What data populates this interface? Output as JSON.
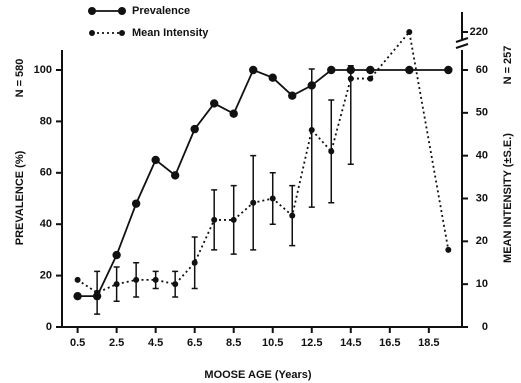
{
  "chart_data": {
    "type": "line",
    "x_label": "MOOSE AGE (Years)",
    "y_label": "PREVALENCE (%)",
    "y2_label": "MEAN INTENSITY (±S.E.)",
    "y_annotation": "N = 580",
    "y2_annotation": "N = 257",
    "x": [
      0.5,
      1.5,
      2.5,
      3.5,
      4.5,
      5.5,
      6.5,
      7.5,
      8.5,
      9.5,
      10.5,
      11.5,
      12.5,
      13.5,
      14.5,
      15.5,
      17.5,
      19.5
    ],
    "xlim": [
      -0.3,
      20.2
    ],
    "xticks": [
      0.5,
      2.5,
      4.5,
      6.5,
      8.5,
      10.5,
      12.5,
      14.5,
      16.5,
      18.5
    ],
    "ylim": [
      0,
      100
    ],
    "yticks": [
      0,
      20,
      40,
      60,
      80,
      100
    ],
    "y2lim": [
      0,
      220
    ],
    "y2ticks": [
      0,
      10,
      20,
      30,
      40,
      50,
      60,
      220
    ],
    "y2_axis_break": true,
    "series": [
      {
        "name": "Prevalence",
        "color": "#111111",
        "style": "solid",
        "values": [
          12,
          12,
          28,
          48,
          65,
          59,
          77,
          87,
          83,
          100,
          97,
          90,
          94,
          100,
          100,
          100,
          100,
          100
        ]
      },
      {
        "name": "Mean Intensity",
        "color": "#111111",
        "style": "dotted",
        "axis": "y2",
        "values": [
          11,
          8,
          10,
          11,
          11,
          10,
          15,
          25,
          25,
          29,
          30,
          26,
          46,
          41,
          58,
          58,
          220,
          18
        ],
        "errors": [
          null,
          5,
          4,
          4,
          2,
          3,
          6,
          7,
          8,
          11,
          6,
          7,
          18,
          12,
          20,
          null,
          null,
          null
        ]
      }
    ]
  }
}
